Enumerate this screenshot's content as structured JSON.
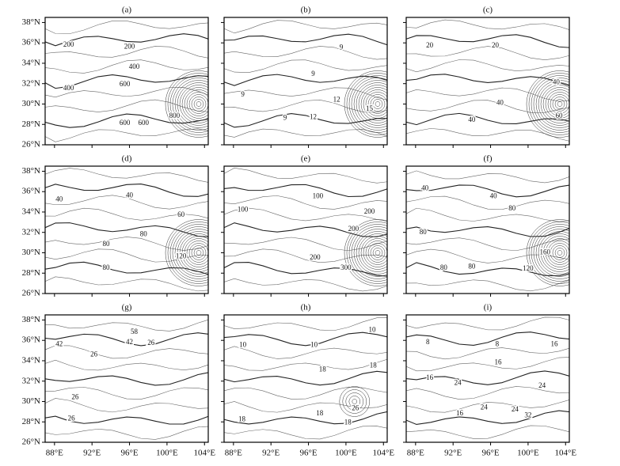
{
  "chart_data": [
    {
      "type": "contour",
      "title": "(a)",
      "xlim": [
        87,
        104.4
      ],
      "ylim": [
        26,
        38.5
      ],
      "xticks": [
        88,
        92,
        96,
        100,
        104
      ],
      "yticks": [
        {
          "value": 26,
          "label": "26°N"
        },
        {
          "value": 28,
          "label": "28°N"
        },
        {
          "value": 30,
          "label": "30°N"
        },
        {
          "value": 32,
          "label": "32°N"
        },
        {
          "value": 34,
          "label": "34°N"
        },
        {
          "value": 36,
          "label": "36°N"
        },
        {
          "value": 38,
          "label": "38°N"
        }
      ],
      "contour_labels": [
        {
          "label": "200",
          "x": 89.5,
          "y": 35.8
        },
        {
          "label": "200",
          "x": 96,
          "y": 35.6
        },
        {
          "label": "400",
          "x": 96.5,
          "y": 33.6
        },
        {
          "label": "400",
          "x": 89.5,
          "y": 31.5
        },
        {
          "label": "600",
          "x": 95.5,
          "y": 31.9
        },
        {
          "label": "600",
          "x": 95.5,
          "y": 28.1
        },
        {
          "label": "600",
          "x": 97.5,
          "y": 28.1
        },
        {
          "label": "800",
          "x": 100.8,
          "y": 28.8
        }
      ]
    },
    {
      "type": "contour",
      "title": "(b)",
      "xlim": [
        87,
        104.4
      ],
      "ylim": [
        26,
        38.5
      ],
      "xticks": [
        88,
        92,
        96,
        100,
        104
      ],
      "yticks": [
        26,
        28,
        30,
        32,
        34,
        36,
        38
      ],
      "contour_labels": [
        {
          "label": "9",
          "x": 99.5,
          "y": 35.5
        },
        {
          "label": "9",
          "x": 96.5,
          "y": 32.9
        },
        {
          "label": "9",
          "x": 89,
          "y": 30.9
        },
        {
          "label": "9",
          "x": 93.5,
          "y": 28.6
        },
        {
          "label": "12",
          "x": 99,
          "y": 30.4
        },
        {
          "label": "12",
          "x": 96.5,
          "y": 28.7
        },
        {
          "label": "15",
          "x": 102.5,
          "y": 29.5
        }
      ]
    },
    {
      "type": "contour",
      "title": "(c)",
      "xlim": [
        87,
        104.4
      ],
      "ylim": [
        26,
        38.5
      ],
      "xticks": [
        88,
        92,
        96,
        100,
        104
      ],
      "yticks": [
        26,
        28,
        30,
        32,
        34,
        36,
        38
      ],
      "contour_labels": [
        {
          "label": "20",
          "x": 89.5,
          "y": 35.7
        },
        {
          "label": "20",
          "x": 96.5,
          "y": 35.7
        },
        {
          "label": "40",
          "x": 103,
          "y": 32.1
        },
        {
          "label": "40",
          "x": 97,
          "y": 30.1
        },
        {
          "label": "40",
          "x": 94,
          "y": 28.4
        },
        {
          "label": "60",
          "x": 103.3,
          "y": 28.8
        }
      ]
    },
    {
      "type": "contour",
      "title": "(d)",
      "xlim": [
        87,
        104.4
      ],
      "ylim": [
        26,
        38.5
      ],
      "xticks": [
        88,
        92,
        96,
        100,
        104
      ],
      "yticks": [
        {
          "value": 26,
          "label": "26°N"
        },
        {
          "value": 28,
          "label": "28°N"
        },
        {
          "value": 30,
          "label": "30°N"
        },
        {
          "value": 32,
          "label": "32°N"
        },
        {
          "value": 34,
          "label": "34°N"
        },
        {
          "value": 36,
          "label": "36°N"
        },
        {
          "value": 38,
          "label": "38°N"
        }
      ],
      "contour_labels": [
        {
          "label": "40",
          "x": 88.5,
          "y": 35.2
        },
        {
          "label": "40",
          "x": 96,
          "y": 35.6
        },
        {
          "label": "60",
          "x": 101.5,
          "y": 33.7
        },
        {
          "label": "80",
          "x": 97.5,
          "y": 31.8
        },
        {
          "label": "80",
          "x": 93.5,
          "y": 30.8
        },
        {
          "label": "80",
          "x": 93.5,
          "y": 28.5
        },
        {
          "label": "120",
          "x": 101.5,
          "y": 29.6
        }
      ]
    },
    {
      "type": "contour",
      "title": "(e)",
      "xlim": [
        87,
        104.4
      ],
      "ylim": [
        26,
        38.5
      ],
      "xticks": [
        88,
        92,
        96,
        100,
        104
      ],
      "yticks": [
        26,
        28,
        30,
        32,
        34,
        36,
        38
      ],
      "contour_labels": [
        {
          "label": "100",
          "x": 89,
          "y": 34.2
        },
        {
          "label": "100",
          "x": 97,
          "y": 35.5
        },
        {
          "label": "200",
          "x": 102.5,
          "y": 34
        },
        {
          "label": "200",
          "x": 100.8,
          "y": 32.3
        },
        {
          "label": "200",
          "x": 96.7,
          "y": 29.5
        },
        {
          "label": "300",
          "x": 100,
          "y": 28.5
        }
      ]
    },
    {
      "type": "contour",
      "title": "(f)",
      "xlim": [
        87,
        104.4
      ],
      "ylim": [
        26,
        38.5
      ],
      "xticks": [
        88,
        92,
        96,
        100,
        104
      ],
      "yticks": [
        26,
        28,
        30,
        32,
        34,
        36,
        38
      ],
      "contour_labels": [
        {
          "label": "40",
          "x": 89,
          "y": 36.3
        },
        {
          "label": "40",
          "x": 96.3,
          "y": 35.5
        },
        {
          "label": "80",
          "x": 98.3,
          "y": 34.3
        },
        {
          "label": "80",
          "x": 88.8,
          "y": 32
        },
        {
          "label": "80",
          "x": 94,
          "y": 28.6
        },
        {
          "label": "80",
          "x": 91,
          "y": 28.5
        },
        {
          "label": "120",
          "x": 100,
          "y": 28.4
        },
        {
          "label": "160",
          "x": 101.8,
          "y": 30
        }
      ]
    },
    {
      "type": "contour",
      "title": "(g)",
      "xlim": [
        87,
        104.4
      ],
      "ylim": [
        26,
        38.5
      ],
      "xticks": [
        {
          "value": 88,
          "label": "88°E"
        },
        {
          "value": 92,
          "label": "92°E"
        },
        {
          "value": 96,
          "label": "96°E"
        },
        {
          "value": 100,
          "label": "100°E"
        },
        {
          "value": 104,
          "label": "104°E"
        }
      ],
      "yticks": [
        {
          "value": 26,
          "label": "26°N"
        },
        {
          "value": 28,
          "label": "28°N"
        },
        {
          "value": 30,
          "label": "30°N"
        },
        {
          "value": 32,
          "label": "32°N"
        },
        {
          "value": 34,
          "label": "34°N"
        },
        {
          "value": 36,
          "label": "36°N"
        },
        {
          "value": 38,
          "label": "38°N"
        }
      ],
      "contour_labels": [
        {
          "label": "42",
          "x": 88.5,
          "y": 35.6
        },
        {
          "label": "58",
          "x": 96.5,
          "y": 36.8
        },
        {
          "label": "42",
          "x": 96,
          "y": 35.8
        },
        {
          "label": "26",
          "x": 98.3,
          "y": 35.7
        },
        {
          "label": "26",
          "x": 92.2,
          "y": 34.6
        },
        {
          "label": "26",
          "x": 90.2,
          "y": 30.4
        },
        {
          "label": "26",
          "x": 89.8,
          "y": 28.3
        }
      ]
    },
    {
      "type": "contour",
      "title": "(h)",
      "xlim": [
        87,
        104.4
      ],
      "ylim": [
        26,
        38.5
      ],
      "xticks": [
        {
          "value": 88,
          "label": "88°E"
        },
        {
          "value": 92,
          "label": "92°E"
        },
        {
          "value": 96,
          "label": "96°E"
        },
        {
          "value": 100,
          "label": "100°E"
        },
        {
          "value": 104,
          "label": "104°E"
        }
      ],
      "yticks": [
        26,
        28,
        30,
        32,
        34,
        36,
        38
      ],
      "contour_labels": [
        {
          "label": "10",
          "x": 89,
          "y": 35.5
        },
        {
          "label": "10",
          "x": 96.6,
          "y": 35.5
        },
        {
          "label": "10",
          "x": 102.8,
          "y": 37
        },
        {
          "label": "18",
          "x": 97.5,
          "y": 33.1
        },
        {
          "label": "18",
          "x": 102.9,
          "y": 33.5
        },
        {
          "label": "18",
          "x": 97.2,
          "y": 28.8
        },
        {
          "label": "26",
          "x": 101,
          "y": 29.3
        },
        {
          "label": "18",
          "x": 100.2,
          "y": 27.9
        },
        {
          "label": "18",
          "x": 88.9,
          "y": 28.2
        }
      ]
    },
    {
      "type": "contour",
      "title": "(i)",
      "xlim": [
        87,
        104.4
      ],
      "ylim": [
        26,
        38.5
      ],
      "xticks": [
        {
          "value": 88,
          "label": "88°E"
        },
        {
          "value": 92,
          "label": "92°E"
        },
        {
          "value": 96,
          "label": "96°E"
        },
        {
          "value": 100,
          "label": "100°E"
        },
        {
          "value": 104,
          "label": "104°E"
        }
      ],
      "yticks": [
        26,
        28,
        30,
        32,
        34,
        36,
        38
      ],
      "contour_labels": [
        {
          "label": "8",
          "x": 89.3,
          "y": 35.8
        },
        {
          "label": "8",
          "x": 96.7,
          "y": 35.6
        },
        {
          "label": "16",
          "x": 102.8,
          "y": 35.6
        },
        {
          "label": "16",
          "x": 96.8,
          "y": 33.8
        },
        {
          "label": "16",
          "x": 89.5,
          "y": 32.3
        },
        {
          "label": "24",
          "x": 92.5,
          "y": 31.8
        },
        {
          "label": "24",
          "x": 101.5,
          "y": 31.5
        },
        {
          "label": "24",
          "x": 95.3,
          "y": 29.4
        },
        {
          "label": "24",
          "x": 98.6,
          "y": 29.2
        },
        {
          "label": "16",
          "x": 92.7,
          "y": 28.8
        },
        {
          "label": "32",
          "x": 100,
          "y": 28.6
        }
      ]
    }
  ]
}
